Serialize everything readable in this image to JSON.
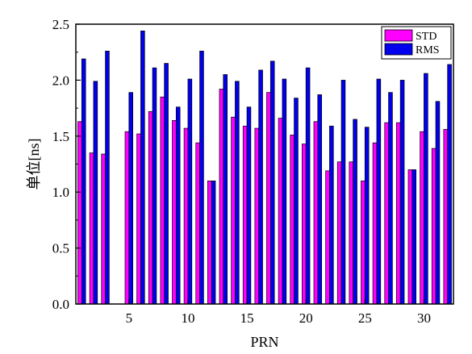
{
  "chart_data": {
    "type": "bar",
    "xlabel": "PRN",
    "ylabel": "单位[ns]",
    "xlim": [
      0.5,
      32.5
    ],
    "ylim": [
      0,
      2.5
    ],
    "x_ticks": [
      5,
      10,
      15,
      20,
      25,
      30
    ],
    "y_ticks": [
      "0.0",
      "0.5",
      "1.0",
      "1.5",
      "2.0",
      "2.5"
    ],
    "legend_position": "top-right",
    "grid": false,
    "categories": [
      1,
      2,
      3,
      4,
      5,
      6,
      7,
      8,
      9,
      10,
      11,
      12,
      13,
      14,
      15,
      16,
      17,
      18,
      19,
      20,
      21,
      22,
      23,
      24,
      25,
      26,
      27,
      28,
      29,
      30,
      31,
      32
    ],
    "series": [
      {
        "name": "STD",
        "color": "#ff00ff",
        "values": [
          1.63,
          1.35,
          1.34,
          null,
          1.54,
          1.52,
          1.72,
          1.85,
          1.64,
          1.57,
          1.44,
          1.1,
          1.92,
          1.67,
          1.59,
          1.57,
          1.89,
          1.66,
          1.51,
          1.43,
          1.63,
          1.19,
          1.27,
          1.27,
          1.1,
          1.44,
          1.62,
          1.62,
          1.2,
          1.54,
          1.39,
          1.56
        ]
      },
      {
        "name": "RMS",
        "color": "#0000ee",
        "values": [
          2.19,
          1.99,
          2.26,
          null,
          1.89,
          2.44,
          2.11,
          2.15,
          1.76,
          2.01,
          2.26,
          1.1,
          2.05,
          1.99,
          1.76,
          2.09,
          2.17,
          2.01,
          1.84,
          2.11,
          1.87,
          1.59,
          2.0,
          1.65,
          1.58,
          2.01,
          1.89,
          2.0,
          1.2,
          2.06,
          1.81,
          2.14
        ]
      }
    ]
  }
}
